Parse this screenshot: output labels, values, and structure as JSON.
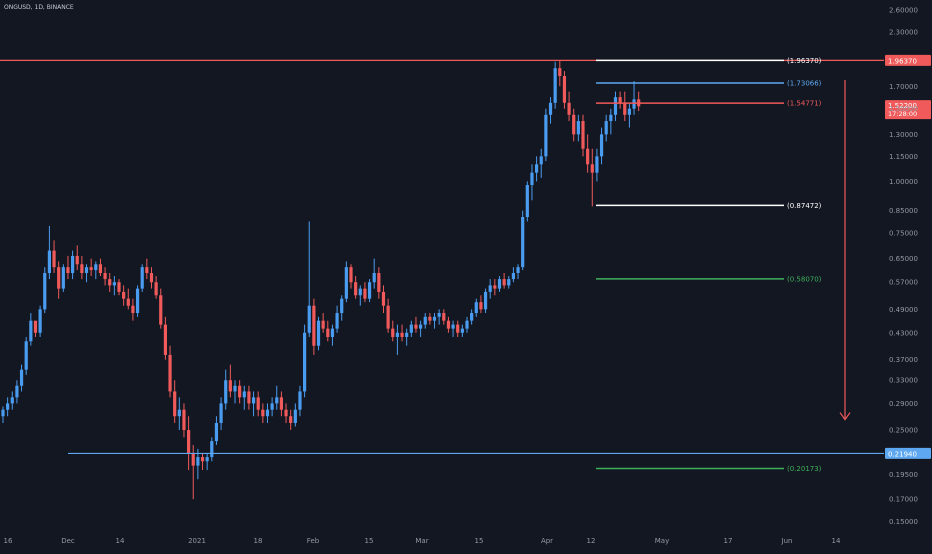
{
  "symbol_label": "ONGUSD, 1D, BINANCE",
  "colors": {
    "background": "#131722",
    "up": "#4a9cf0",
    "down": "#f05a5a",
    "red_line": "#f05a5a",
    "blue_line": "#5da8f0",
    "white_line": "#ffffff",
    "green_line": "#3fb05a",
    "arrow": "#f05a5a",
    "axis_text": "#9598a1"
  },
  "chart_data": {
    "type": "candlestick",
    "scale": "log",
    "ylim": [
      0.14,
      2.75
    ],
    "y_ticks": [
      "2.60000",
      "2.30000",
      "1.70000",
      "1.50000",
      "1.30000",
      "1.15000",
      "1.00000",
      "0.85000",
      "0.75000",
      "0.65000",
      "0.57000",
      "0.49000",
      "0.43000",
      "0.37000",
      "0.33000",
      "0.29000",
      "0.25000",
      "0.19500",
      "0.17000",
      "0.15000"
    ],
    "x_ticks": [
      "16",
      "Dec",
      "14",
      "2021",
      "18",
      "Feb",
      "15",
      "Mar",
      "15",
      "Apr",
      "12",
      "May",
      "17",
      "Jun",
      "14"
    ],
    "series": [
      {
        "ohlc": [
          [
            0.27,
            0.285,
            0.26,
            0.28
          ],
          [
            0.28,
            0.3,
            0.27,
            0.29
          ],
          [
            0.29,
            0.31,
            0.28,
            0.3
          ],
          [
            0.3,
            0.33,
            0.29,
            0.32
          ],
          [
            0.32,
            0.36,
            0.31,
            0.35
          ],
          [
            0.35,
            0.42,
            0.34,
            0.41
          ],
          [
            0.41,
            0.48,
            0.4,
            0.46
          ],
          [
            0.46,
            0.45,
            0.42,
            0.43
          ],
          [
            0.43,
            0.5,
            0.42,
            0.49
          ],
          [
            0.49,
            0.62,
            0.48,
            0.6
          ],
          [
            0.6,
            0.78,
            0.58,
            0.68
          ],
          [
            0.68,
            0.72,
            0.6,
            0.62
          ],
          [
            0.62,
            0.64,
            0.52,
            0.55
          ],
          [
            0.55,
            0.63,
            0.54,
            0.62
          ],
          [
            0.62,
            0.66,
            0.58,
            0.6
          ],
          [
            0.6,
            0.68,
            0.58,
            0.66
          ],
          [
            0.66,
            0.7,
            0.61,
            0.63
          ],
          [
            0.63,
            0.66,
            0.58,
            0.6
          ],
          [
            0.6,
            0.63,
            0.57,
            0.62
          ],
          [
            0.62,
            0.65,
            0.59,
            0.61
          ],
          [
            0.61,
            0.64,
            0.58,
            0.63
          ],
          [
            0.63,
            0.65,
            0.59,
            0.6
          ],
          [
            0.6,
            0.62,
            0.56,
            0.58
          ],
          [
            0.58,
            0.6,
            0.54,
            0.56
          ],
          [
            0.56,
            0.59,
            0.53,
            0.57
          ],
          [
            0.57,
            0.58,
            0.53,
            0.54
          ],
          [
            0.54,
            0.56,
            0.5,
            0.52
          ],
          [
            0.52,
            0.55,
            0.49,
            0.5
          ],
          [
            0.5,
            0.52,
            0.46,
            0.48
          ],
          [
            0.48,
            0.56,
            0.47,
            0.55
          ],
          [
            0.55,
            0.63,
            0.54,
            0.62
          ],
          [
            0.62,
            0.65,
            0.58,
            0.6
          ],
          [
            0.6,
            0.62,
            0.55,
            0.57
          ],
          [
            0.57,
            0.59,
            0.52,
            0.53
          ],
          [
            0.53,
            0.55,
            0.44,
            0.45
          ],
          [
            0.45,
            0.47,
            0.37,
            0.38
          ],
          [
            0.38,
            0.4,
            0.3,
            0.31
          ],
          [
            0.31,
            0.33,
            0.26,
            0.27
          ],
          [
            0.27,
            0.3,
            0.25,
            0.28
          ],
          [
            0.28,
            0.29,
            0.24,
            0.25
          ],
          [
            0.25,
            0.27,
            0.2,
            0.22
          ],
          [
            0.22,
            0.23,
            0.17,
            0.205
          ],
          [
            0.205,
            0.225,
            0.19,
            0.215
          ],
          [
            0.215,
            0.22,
            0.2,
            0.21
          ],
          [
            0.21,
            0.22,
            0.2,
            0.215
          ],
          [
            0.215,
            0.24,
            0.21,
            0.235
          ],
          [
            0.235,
            0.27,
            0.23,
            0.26
          ],
          [
            0.26,
            0.3,
            0.25,
            0.29
          ],
          [
            0.29,
            0.35,
            0.28,
            0.33
          ],
          [
            0.33,
            0.36,
            0.3,
            0.31
          ],
          [
            0.31,
            0.33,
            0.29,
            0.32
          ],
          [
            0.32,
            0.33,
            0.29,
            0.3
          ],
          [
            0.3,
            0.32,
            0.28,
            0.31
          ],
          [
            0.31,
            0.32,
            0.28,
            0.29
          ],
          [
            0.29,
            0.31,
            0.27,
            0.3
          ],
          [
            0.3,
            0.31,
            0.27,
            0.28
          ],
          [
            0.28,
            0.29,
            0.26,
            0.27
          ],
          [
            0.27,
            0.29,
            0.26,
            0.28
          ],
          [
            0.28,
            0.3,
            0.27,
            0.29
          ],
          [
            0.29,
            0.32,
            0.28,
            0.3
          ],
          [
            0.3,
            0.31,
            0.27,
            0.28
          ],
          [
            0.28,
            0.29,
            0.26,
            0.27
          ],
          [
            0.27,
            0.28,
            0.25,
            0.26
          ],
          [
            0.26,
            0.29,
            0.255,
            0.28
          ],
          [
            0.28,
            0.32,
            0.27,
            0.31
          ],
          [
            0.31,
            0.45,
            0.3,
            0.43
          ],
          [
            0.43,
            0.8,
            0.42,
            0.5
          ],
          [
            0.5,
            0.52,
            0.38,
            0.4
          ],
          [
            0.4,
            0.47,
            0.39,
            0.46
          ],
          [
            0.46,
            0.48,
            0.43,
            0.44
          ],
          [
            0.44,
            0.46,
            0.41,
            0.42
          ],
          [
            0.42,
            0.45,
            0.4,
            0.44
          ],
          [
            0.44,
            0.5,
            0.43,
            0.48
          ],
          [
            0.48,
            0.53,
            0.46,
            0.52
          ],
          [
            0.52,
            0.64,
            0.51,
            0.62
          ],
          [
            0.62,
            0.63,
            0.55,
            0.57
          ],
          [
            0.57,
            0.59,
            0.52,
            0.53
          ],
          [
            0.53,
            0.56,
            0.5,
            0.55
          ],
          [
            0.55,
            0.57,
            0.51,
            0.52
          ],
          [
            0.52,
            0.58,
            0.51,
            0.57
          ],
          [
            0.57,
            0.65,
            0.55,
            0.6
          ],
          [
            0.6,
            0.62,
            0.52,
            0.54
          ],
          [
            0.54,
            0.56,
            0.48,
            0.5
          ],
          [
            0.5,
            0.52,
            0.43,
            0.44
          ],
          [
            0.44,
            0.46,
            0.41,
            0.42
          ],
          [
            0.42,
            0.45,
            0.38,
            0.43
          ],
          [
            0.43,
            0.45,
            0.41,
            0.42
          ],
          [
            0.42,
            0.44,
            0.4,
            0.43
          ],
          [
            0.43,
            0.46,
            0.42,
            0.45
          ],
          [
            0.45,
            0.47,
            0.43,
            0.44
          ],
          [
            0.44,
            0.46,
            0.42,
            0.45
          ],
          [
            0.45,
            0.48,
            0.44,
            0.47
          ],
          [
            0.47,
            0.48,
            0.45,
            0.46
          ],
          [
            0.46,
            0.48,
            0.44,
            0.47
          ],
          [
            0.47,
            0.49,
            0.45,
            0.48
          ],
          [
            0.48,
            0.49,
            0.45,
            0.46
          ],
          [
            0.46,
            0.47,
            0.43,
            0.44
          ],
          [
            0.44,
            0.46,
            0.42,
            0.45
          ],
          [
            0.45,
            0.46,
            0.42,
            0.43
          ],
          [
            0.43,
            0.45,
            0.42,
            0.44
          ],
          [
            0.44,
            0.47,
            0.43,
            0.46
          ],
          [
            0.46,
            0.49,
            0.45,
            0.48
          ],
          [
            0.48,
            0.52,
            0.47,
            0.51
          ],
          [
            0.51,
            0.53,
            0.48,
            0.49
          ],
          [
            0.49,
            0.55,
            0.48,
            0.54
          ],
          [
            0.54,
            0.58,
            0.52,
            0.56
          ],
          [
            0.56,
            0.58,
            0.53,
            0.55
          ],
          [
            0.55,
            0.59,
            0.54,
            0.58
          ],
          [
            0.58,
            0.6,
            0.55,
            0.56
          ],
          [
            0.56,
            0.59,
            0.55,
            0.58
          ],
          [
            0.58,
            0.62,
            0.57,
            0.6
          ],
          [
            0.6,
            0.63,
            0.58,
            0.62
          ],
          [
            0.62,
            0.85,
            0.61,
            0.82
          ],
          [
            0.82,
            1.0,
            0.8,
            0.98
          ],
          [
            0.98,
            1.1,
            0.9,
            1.05
          ],
          [
            1.05,
            1.15,
            1.0,
            1.1
          ],
          [
            1.1,
            1.2,
            1.02,
            1.15
          ],
          [
            1.15,
            1.5,
            1.12,
            1.45
          ],
          [
            1.45,
            1.6,
            1.38,
            1.55
          ],
          [
            1.55,
            1.95,
            1.5,
            1.88
          ],
          [
            1.88,
            1.96,
            1.7,
            1.8
          ],
          [
            1.8,
            1.85,
            1.5,
            1.55
          ],
          [
            1.55,
            1.65,
            1.4,
            1.45
          ],
          [
            1.45,
            1.5,
            1.25,
            1.3
          ],
          [
            1.3,
            1.45,
            1.25,
            1.4
          ],
          [
            1.4,
            1.45,
            1.15,
            1.2
          ],
          [
            1.2,
            1.3,
            1.05,
            1.1
          ],
          [
            1.1,
            1.2,
            0.87,
            1.05
          ],
          [
            1.05,
            1.2,
            1.0,
            1.15
          ],
          [
            1.15,
            1.35,
            1.1,
            1.3
          ],
          [
            1.3,
            1.45,
            1.25,
            1.4
          ],
          [
            1.4,
            1.5,
            1.3,
            1.45
          ],
          [
            1.45,
            1.65,
            1.4,
            1.6
          ],
          [
            1.6,
            1.65,
            1.5,
            1.55
          ],
          [
            1.55,
            1.65,
            1.4,
            1.45
          ],
          [
            1.45,
            1.55,
            1.35,
            1.5
          ],
          [
            1.5,
            1.75,
            1.45,
            1.58
          ],
          [
            1.58,
            1.65,
            1.48,
            1.52
          ]
        ]
      }
    ],
    "levels": [
      {
        "value": 1.9637,
        "label": "(1.96370)",
        "color": "white"
      },
      {
        "value": 1.73066,
        "label": "(1.73066)",
        "color": "blue"
      },
      {
        "value": 1.54771,
        "label": "(1.54771)",
        "color": "red"
      },
      {
        "value": 0.87472,
        "label": "(0.87472)",
        "color": "white"
      },
      {
        "value": 0.5807,
        "label": "(0.58070)",
        "color": "green"
      },
      {
        "value": 0.20173,
        "label": "(0.20173)",
        "color": "green"
      }
    ],
    "horizontal_lines": [
      {
        "value": 1.9637,
        "color": "red",
        "tag": "1.96370"
      },
      {
        "value": 0.2194,
        "color": "blue",
        "tag": "0.21940"
      }
    ],
    "current_price": {
      "value": 1.522,
      "tag": "1.52200",
      "countdown": "17:28:00"
    },
    "arrow": {
      "from": 1.76,
      "to": 0.265,
      "direction": "down"
    }
  }
}
